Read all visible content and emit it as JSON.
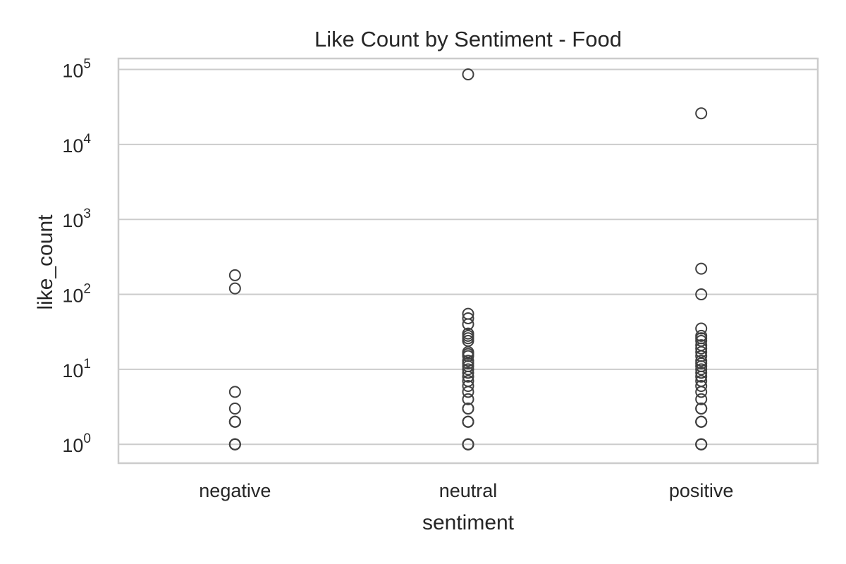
{
  "chart_data": {
    "type": "scatter",
    "title": "Like Count by Sentiment - Food",
    "xlabel": "sentiment",
    "ylabel": "like_count",
    "categories": [
      "negative",
      "neutral",
      "positive"
    ],
    "y_scale": "log",
    "ylim": [
      0.56,
      140000
    ],
    "y_ticks": [
      {
        "value": 1,
        "base": "10",
        "exp": "0"
      },
      {
        "value": 10,
        "base": "10",
        "exp": "1"
      },
      {
        "value": 100,
        "base": "10",
        "exp": "2"
      },
      {
        "value": 1000,
        "base": "10",
        "exp": "3"
      },
      {
        "value": 10000,
        "base": "10",
        "exp": "4"
      },
      {
        "value": 100000,
        "base": "10",
        "exp": "5"
      }
    ],
    "grid": true,
    "legend": "none",
    "series": [
      {
        "category": "negative",
        "values": [
          1,
          1,
          1,
          2,
          2,
          2,
          3,
          5,
          120,
          180
        ]
      },
      {
        "category": "neutral",
        "values": [
          1,
          1,
          1,
          1,
          2,
          2,
          2,
          3,
          3,
          4,
          5,
          6,
          7,
          8,
          9,
          10,
          11,
          12,
          13,
          15,
          16,
          17,
          24,
          26,
          28,
          30,
          40,
          48,
          55,
          86000
        ]
      },
      {
        "category": "positive",
        "values": [
          1,
          1,
          1,
          2,
          2,
          2,
          3,
          3,
          4,
          5,
          6,
          7,
          8,
          9,
          10,
          11,
          12,
          13,
          15,
          17,
          19,
          21,
          24,
          26,
          28,
          35,
          100,
          220,
          26000
        ]
      }
    ]
  }
}
